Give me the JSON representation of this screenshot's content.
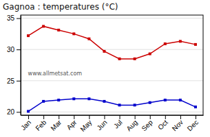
{
  "chart_data": {
    "type": "line",
    "title": "Gagnoa : temperatures (°C)",
    "categories": [
      "Jan",
      "Feb",
      "Mar",
      "Apr",
      "May",
      "Jun",
      "Jul",
      "Aug",
      "Sep",
      "Oct",
      "Nov",
      "Dec"
    ],
    "series": [
      {
        "color": "#cc0000",
        "marker": "square",
        "line_style": "solid",
        "values": [
          32.2,
          33.7,
          33.1,
          32.5,
          31.7,
          29.7,
          28.5,
          28.5,
          29.3,
          30.9,
          31.3,
          30.8
        ]
      },
      {
        "color": "#0000cc",
        "marker": "square",
        "line_style": "solid",
        "values": [
          20.1,
          21.7,
          21.9,
          22.1,
          22.1,
          21.7,
          21.1,
          21.1,
          21.5,
          21.9,
          21.9,
          20.8
        ]
      }
    ],
    "ylim": [
      19.5,
      35.5
    ],
    "yticks": [
      20,
      25,
      30,
      35
    ],
    "grid": true,
    "annotations": [
      "www.allmetsat.com"
    ]
  }
}
